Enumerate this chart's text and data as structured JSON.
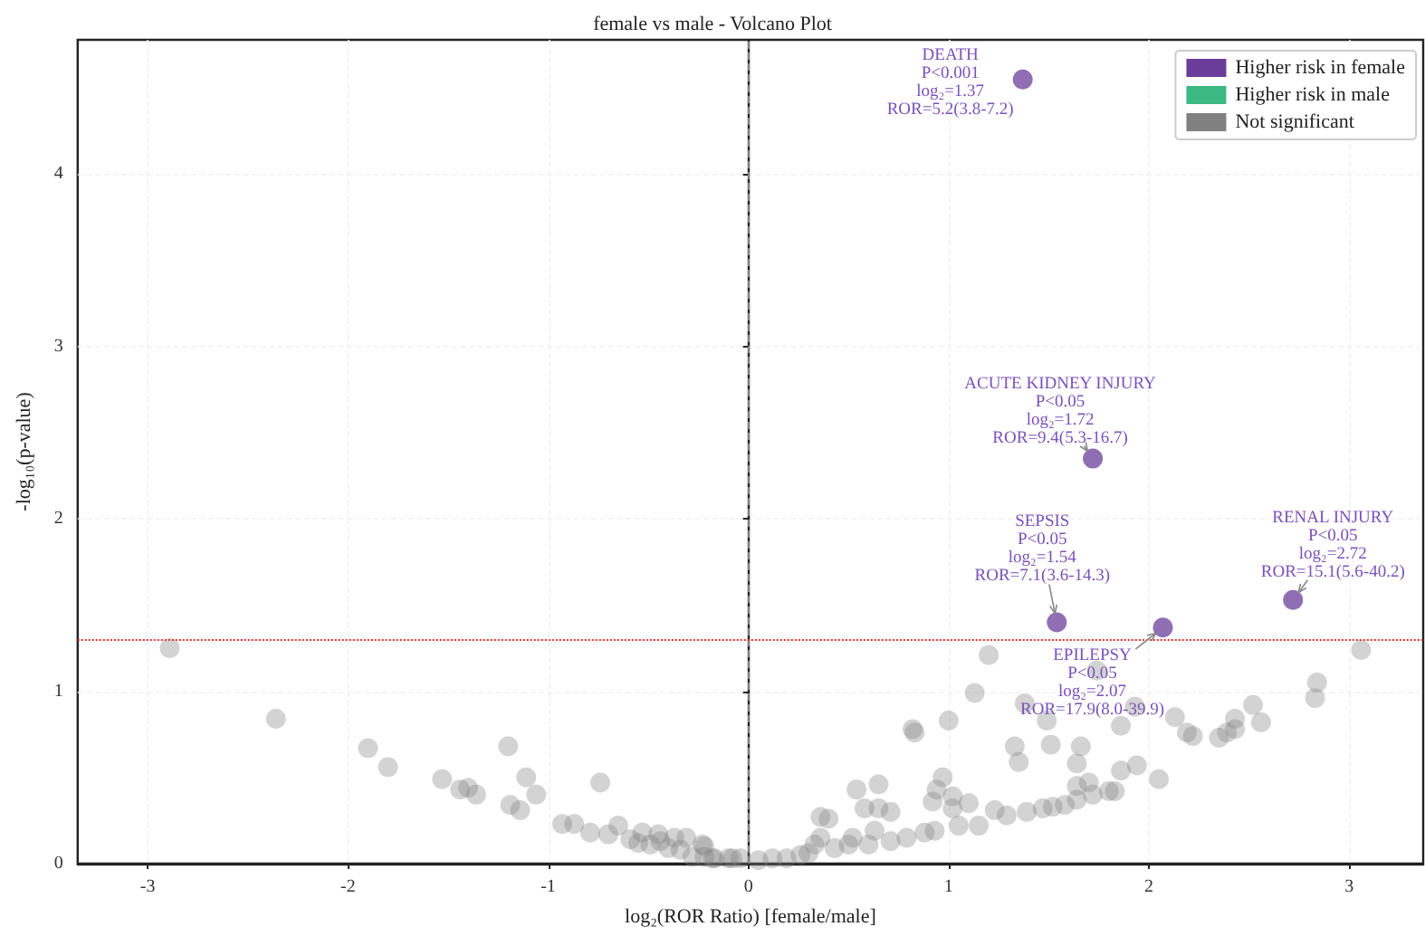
{
  "chart_data": {
    "type": "scatter",
    "title": "female vs male - Volcano Plot",
    "xlabel": "log₂(ROR Ratio) [female/male]",
    "ylabel": "-log₁₀(p-value)",
    "xlim": [
      -3.35,
      3.37
    ],
    "ylim": [
      0,
      4.78
    ],
    "xticks": [
      -3,
      -2,
      -1,
      0,
      1,
      2,
      3
    ],
    "yticks": [
      0,
      1,
      2,
      3,
      4
    ],
    "grid": true,
    "legend": "top right",
    "marker": "circle",
    "series": [
      {
        "name": "Higher risk in female",
        "color": "#6a3d9a",
        "x": [
          1.37,
          1.72,
          1.54,
          2.07,
          2.72
        ],
        "values": [
          4.55,
          2.35,
          1.4,
          1.37,
          1.53
        ]
      },
      {
        "name": "Higher risk in male",
        "color": "#3cb882"
      },
      {
        "name": "Not significant",
        "color": "#808080",
        "x": [
          -2.89,
          -2.36,
          -1.9,
          -1.8,
          -1.53,
          -1.44,
          -1.4,
          -1.36,
          -1.2,
          -1.11,
          -1.06,
          -1.19,
          -1.14,
          -0.93,
          -0.87,
          -0.79,
          -0.74,
          -0.7,
          -0.65,
          -0.59,
          -0.55,
          -0.53,
          -0.49,
          -0.45,
          -0.44,
          -0.4,
          -0.37,
          -0.34,
          -0.31,
          -0.28,
          -0.22,
          -0.22,
          -0.17,
          -0.12,
          -0.08,
          -0.23,
          -0.18,
          -0.1,
          -0.04,
          0.05,
          0.12,
          0.19,
          0.26,
          0.3,
          0.33,
          0.36,
          0.36,
          0.4,
          0.43,
          0.5,
          0.52,
          0.54,
          0.58,
          0.6,
          0.63,
          0.65,
          0.65,
          0.71,
          0.71,
          0.79,
          0.82,
          0.83,
          0.88,
          0.93,
          0.92,
          0.94,
          0.97,
          1.0,
          1.02,
          1.02,
          1.05,
          1.1,
          1.13,
          1.15,
          1.2,
          1.23,
          1.29,
          1.33,
          1.35,
          1.38,
          1.39,
          1.47,
          1.49,
          1.51,
          1.52,
          1.58,
          1.64,
          1.64,
          1.66,
          1.64,
          1.7,
          1.72,
          1.74,
          1.8,
          1.83,
          1.86,
          1.86,
          1.93,
          1.94,
          2.05,
          2.13,
          2.19,
          2.22,
          2.35,
          2.39,
          2.43,
          2.43,
          2.52,
          2.56,
          2.83,
          2.84,
          3.06
        ],
        "values": [
          1.25,
          0.84,
          0.67,
          0.56,
          0.49,
          0.43,
          0.44,
          0.4,
          0.68,
          0.5,
          0.4,
          0.34,
          0.31,
          0.23,
          0.23,
          0.18,
          0.47,
          0.17,
          0.22,
          0.14,
          0.12,
          0.18,
          0.11,
          0.17,
          0.13,
          0.09,
          0.15,
          0.08,
          0.15,
          0.04,
          0.1,
          0.04,
          0.03,
          null,
          0.03,
          0.11,
          0.03,
          0.03,
          0.03,
          0.02,
          0.03,
          0.03,
          0.05,
          0.06,
          0.11,
          0.15,
          0.27,
          0.26,
          0.09,
          0.11,
          0.15,
          0.43,
          0.32,
          0.11,
          0.19,
          0.46,
          0.32,
          0.3,
          0.13,
          0.15,
          0.78,
          0.76,
          0.18,
          0.19,
          0.36,
          0.43,
          0.5,
          0.83,
          0.39,
          0.32,
          0.22,
          0.35,
          0.99,
          0.22,
          1.21,
          0.31,
          0.28,
          0.68,
          0.59,
          0.93,
          0.3,
          0.32,
          0.83,
          0.69,
          0.33,
          0.34,
          0.58,
          0.45,
          0.68,
          0.37,
          0.47,
          0.4,
          1.12,
          0.42,
          0.42,
          0.8,
          0.54,
          0.91,
          0.57,
          0.49,
          0.85,
          0.76,
          0.74,
          0.73,
          0.76,
          0.78,
          0.84,
          0.92,
          0.82,
          0.96,
          1.05,
          1.24
        ]
      }
    ],
    "ref_lines": [
      {
        "axis": "x",
        "value": 0,
        "color": "#808080",
        "line_style": "dashed"
      },
      {
        "axis": "y",
        "value": 1.3,
        "color": "#e8302a",
        "line_style": "dotted"
      }
    ],
    "annotations": [
      {
        "text": "DEATH\nP<0.001\nlog₂=1.37\nROR=5.2(3.8-7.2)",
        "x": 1.37,
        "y": 4.55
      },
      {
        "text": "ACUTE KIDNEY INJURY\nP<0.05\nlog₂=1.72\nROR=9.4(5.3-16.7)",
        "x": 1.72,
        "y": 2.35
      },
      {
        "text": "SEPSIS\nP<0.05\nlog₂=1.54\nROR=7.1(3.6-14.3)",
        "x": 1.54,
        "y": 1.4
      },
      {
        "text": "EPILEPSY\nP<0.05\nlog₂=2.07\nROR=17.9(8.0-39.9)",
        "x": 2.07,
        "y": 1.37
      },
      {
        "text": "RENAL INJURY\nP<0.05\nlog₂=2.72\nROR=15.1(5.6-40.2)",
        "x": 2.72,
        "y": 1.53
      }
    ]
  }
}
